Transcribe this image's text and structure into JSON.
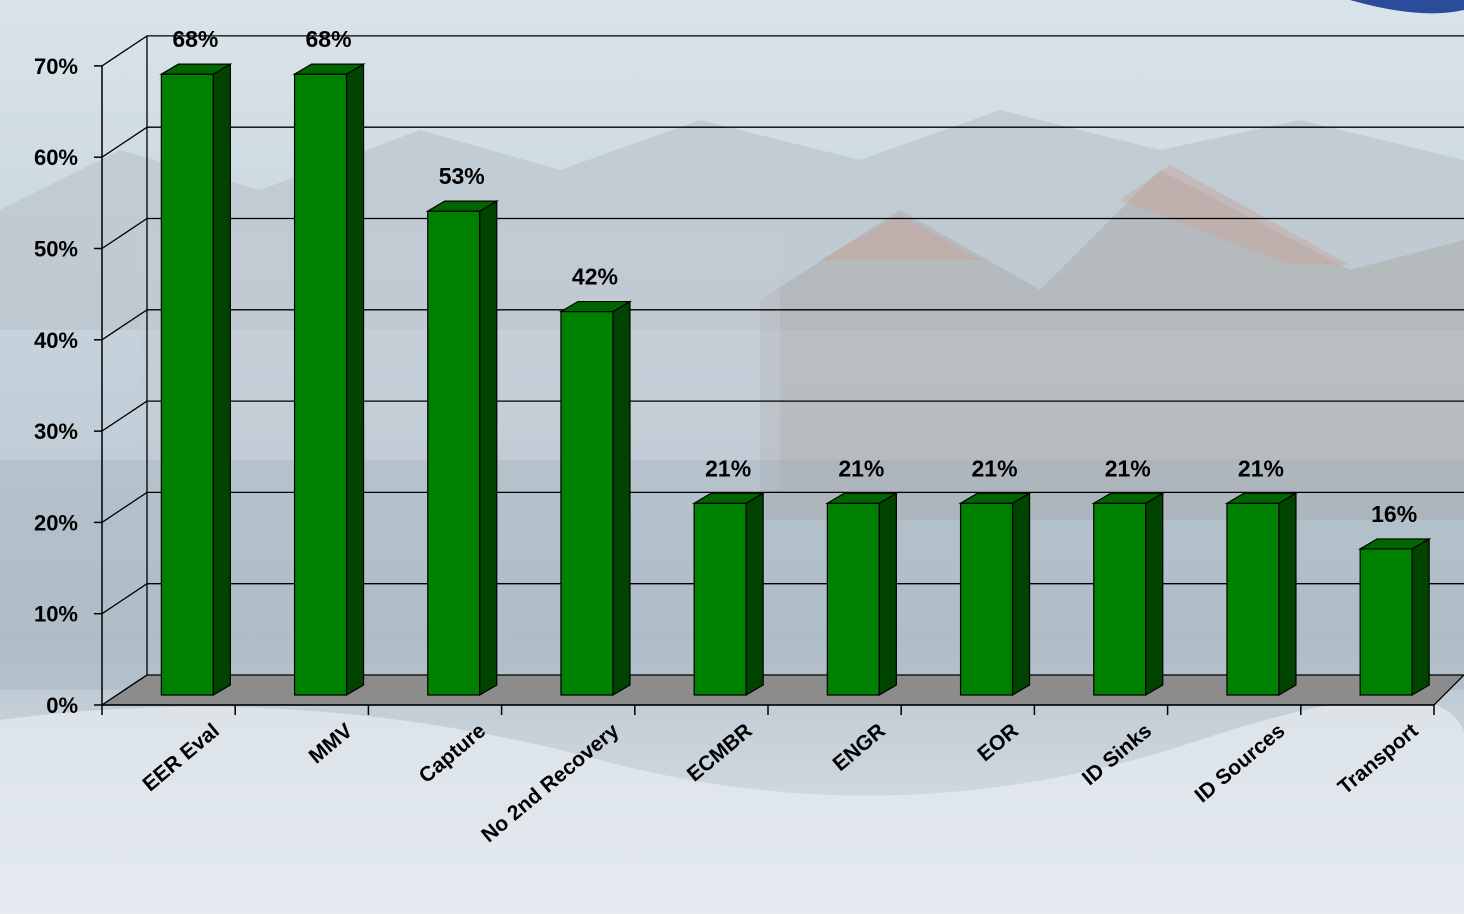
{
  "chart_data": {
    "type": "bar",
    "title": "",
    "xlabel": "",
    "ylabel": "",
    "categories": [
      "EER Eval",
      "MMV",
      "Capture",
      "No 2nd Recovery",
      "ECMBR",
      "ENGR",
      "EOR",
      "ID Sinks",
      "ID Sources",
      "Transport"
    ],
    "values": [
      68,
      68,
      53,
      42,
      21,
      21,
      21,
      21,
      21,
      16
    ],
    "data_labels": [
      "68%",
      "68%",
      "53%",
      "42%",
      "21%",
      "21%",
      "21%",
      "21%",
      "21%",
      "16%"
    ],
    "y_ticks": [
      "0%",
      "10%",
      "20%",
      "30%",
      "40%",
      "50%",
      "60%",
      "70%"
    ],
    "ylim": [
      0,
      70
    ],
    "grid": true,
    "style": "3d-column",
    "colors": {
      "bar_front": "#008000",
      "bar_top": "#006600",
      "bar_side": "#004400",
      "floor": "#8c8c8c",
      "gridline": "#000000"
    }
  }
}
